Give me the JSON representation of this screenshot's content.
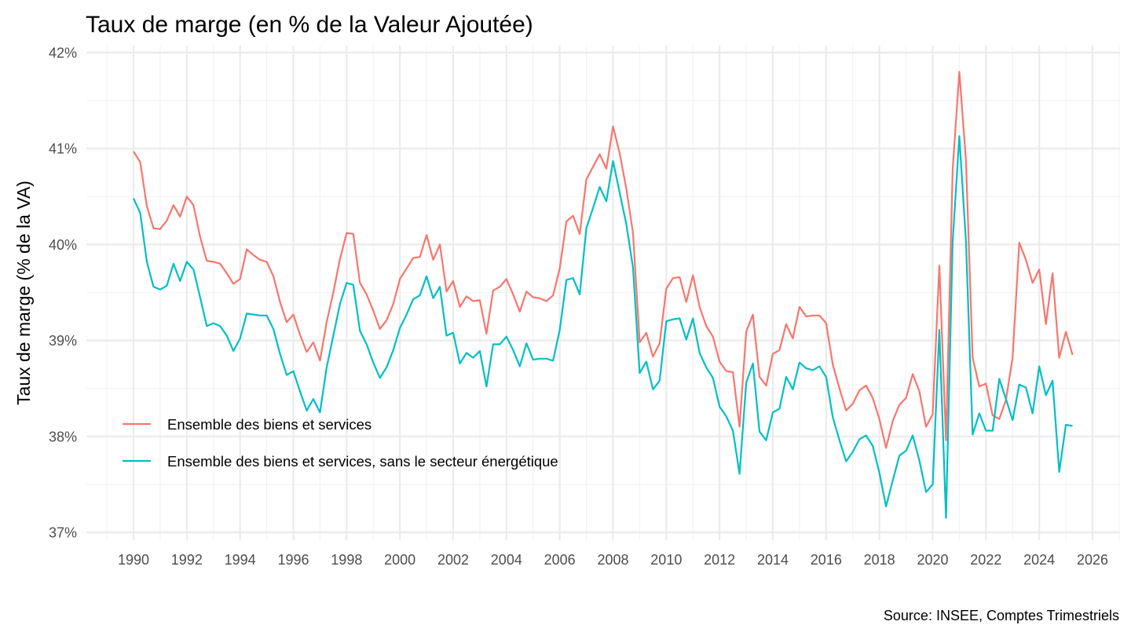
{
  "chart_data": {
    "type": "line",
    "title": "Taux de marge (en % de la Valeur Ajoutée)",
    "xlabel": "",
    "ylabel": "Taux de marge (% de la VA)",
    "caption": "Source: INSEE, Comptes Trimestriels",
    "x_start": 1990,
    "x_step": 0.25,
    "xlim": [
      1988.9,
      2027.1
    ],
    "ylim": [
      37,
      42
    ],
    "x_ticks": [
      1990,
      1992,
      1994,
      1996,
      1998,
      2000,
      2002,
      2004,
      2006,
      2008,
      2010,
      2012,
      2014,
      2016,
      2018,
      2020,
      2022,
      2024,
      2026
    ],
    "x_tick_labels": [
      "1990",
      "1992",
      "1994",
      "1996",
      "1998",
      "2000",
      "2002",
      "2004",
      "2006",
      "2008",
      "2010",
      "2012",
      "2014",
      "2016",
      "2018",
      "2020",
      "2022",
      "2024",
      "2026"
    ],
    "y_ticks": [
      37,
      38,
      39,
      40,
      41,
      42
    ],
    "y_tick_labels": [
      "37%",
      "38%",
      "39%",
      "40%",
      "41%",
      "42%"
    ],
    "grid": true,
    "legend_position": "bottom-left (inside)",
    "series": [
      {
        "name": "Ensemble des biens et services",
        "color": "#F8766D",
        "values": [
          40.97,
          40.86,
          40.4,
          40.17,
          40.16,
          40.25,
          40.41,
          40.29,
          40.5,
          40.41,
          40.08,
          39.83,
          39.82,
          39.8,
          39.7,
          39.59,
          39.64,
          39.95,
          39.89,
          39.84,
          39.82,
          39.67,
          39.4,
          39.19,
          39.27,
          39.06,
          38.88,
          38.98,
          38.79,
          39.19,
          39.5,
          39.85,
          40.12,
          40.11,
          39.6,
          39.48,
          39.31,
          39.12,
          39.21,
          39.38,
          39.64,
          39.75,
          39.86,
          39.87,
          40.1,
          39.84,
          40.0,
          39.51,
          39.62,
          39.35,
          39.46,
          39.41,
          39.42,
          39.07,
          39.52,
          39.56,
          39.64,
          39.48,
          39.3,
          39.51,
          39.45,
          39.44,
          39.41,
          39.47,
          39.75,
          40.24,
          40.3,
          40.11,
          40.68,
          40.81,
          40.94,
          40.79,
          41.23,
          40.95,
          40.58,
          40.12,
          38.98,
          39.08,
          38.83,
          38.97,
          39.54,
          39.65,
          39.66,
          39.4,
          39.68,
          39.35,
          39.15,
          39.04,
          38.78,
          38.68,
          38.67,
          38.1,
          39.09,
          39.27,
          38.62,
          38.53,
          38.86,
          38.9,
          39.17,
          39.02,
          39.35,
          39.25,
          39.26,
          39.26,
          39.18,
          38.75,
          38.5,
          38.27,
          38.34,
          38.48,
          38.53,
          38.4,
          38.18,
          37.88,
          38.16,
          38.33,
          38.4,
          38.65,
          38.47,
          38.1,
          38.23,
          39.78,
          37.96,
          40.78,
          41.8,
          40.87,
          38.82,
          38.52,
          38.55,
          38.22,
          38.18,
          38.38,
          38.82,
          40.02,
          39.84,
          39.6,
          39.74,
          39.17,
          39.7,
          38.82,
          39.09,
          38.85
        ]
      },
      {
        "name": "Ensemble des biens et services, sans le secteur énergétique",
        "color": "#00BFC4",
        "values": [
          40.48,
          40.33,
          39.82,
          39.56,
          39.53,
          39.57,
          39.8,
          39.62,
          39.82,
          39.74,
          39.45,
          39.15,
          39.18,
          39.15,
          39.05,
          38.89,
          39.02,
          39.28,
          39.27,
          39.26,
          39.26,
          39.12,
          38.86,
          38.64,
          38.68,
          38.47,
          38.27,
          38.39,
          38.25,
          38.72,
          39.05,
          39.38,
          39.6,
          39.58,
          39.1,
          38.96,
          38.77,
          38.61,
          38.72,
          38.9,
          39.13,
          39.27,
          39.43,
          39.47,
          39.67,
          39.44,
          39.56,
          39.05,
          39.08,
          38.76,
          38.87,
          38.82,
          38.89,
          38.52,
          38.96,
          38.96,
          39.04,
          38.9,
          38.73,
          38.97,
          38.8,
          38.81,
          38.81,
          38.79,
          39.11,
          39.63,
          39.65,
          39.48,
          40.17,
          40.38,
          40.6,
          40.45,
          40.87,
          40.54,
          40.21,
          39.76,
          38.66,
          38.78,
          38.49,
          38.58,
          39.2,
          39.22,
          39.23,
          39.01,
          39.23,
          38.87,
          38.72,
          38.61,
          38.31,
          38.21,
          38.06,
          37.61,
          38.56,
          38.76,
          38.05,
          37.96,
          38.25,
          38.29,
          38.62,
          38.49,
          38.77,
          38.71,
          38.69,
          38.73,
          38.62,
          38.2,
          37.96,
          37.74,
          37.84,
          37.97,
          38.01,
          37.9,
          37.62,
          37.27,
          37.54,
          37.8,
          37.85,
          38.01,
          37.75,
          37.42,
          37.5,
          39.11,
          37.15,
          40.03,
          41.13,
          40.03,
          38.02,
          38.24,
          38.06,
          38.06,
          38.6,
          38.39,
          38.17,
          38.54,
          38.51,
          38.24,
          38.73,
          38.43,
          38.58,
          37.63,
          38.12,
          38.11
        ]
      }
    ]
  }
}
